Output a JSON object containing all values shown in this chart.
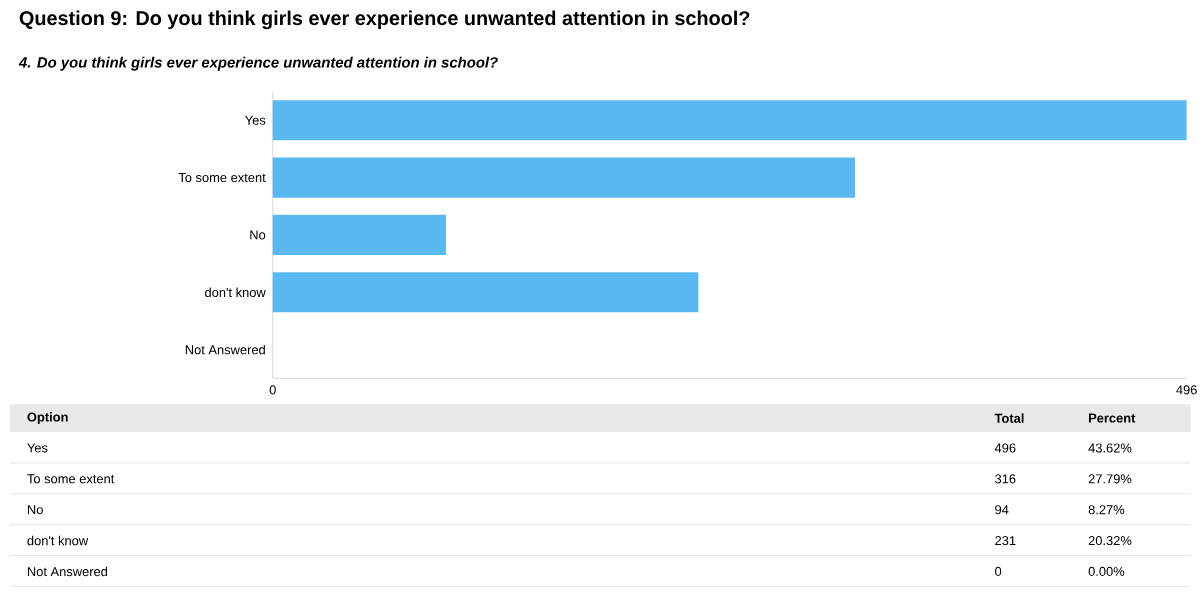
{
  "chart_data": {
    "type": "bar",
    "orientation": "horizontal",
    "title": "Question 9: Do you think girls ever experience unwanted attention in school?",
    "subtitle": "4. Do you think girls ever experience unwanted attention in school?",
    "categories": [
      "Yes",
      "To some extent",
      "No",
      "don't know",
      "Not Answered"
    ],
    "values": [
      496,
      316,
      94,
      231,
      0
    ],
    "color": "#5bb9f2",
    "xlim": [
      0,
      496
    ],
    "xticks": [
      0,
      496
    ],
    "annotations": [
      "Option",
      "Total",
      "Percent",
      "496",
      "43.62%",
      "316",
      "27.79%",
      "94",
      "8.27%",
      "231",
      "20.32%",
      "0",
      "0.00%"
    ]
  }
}
